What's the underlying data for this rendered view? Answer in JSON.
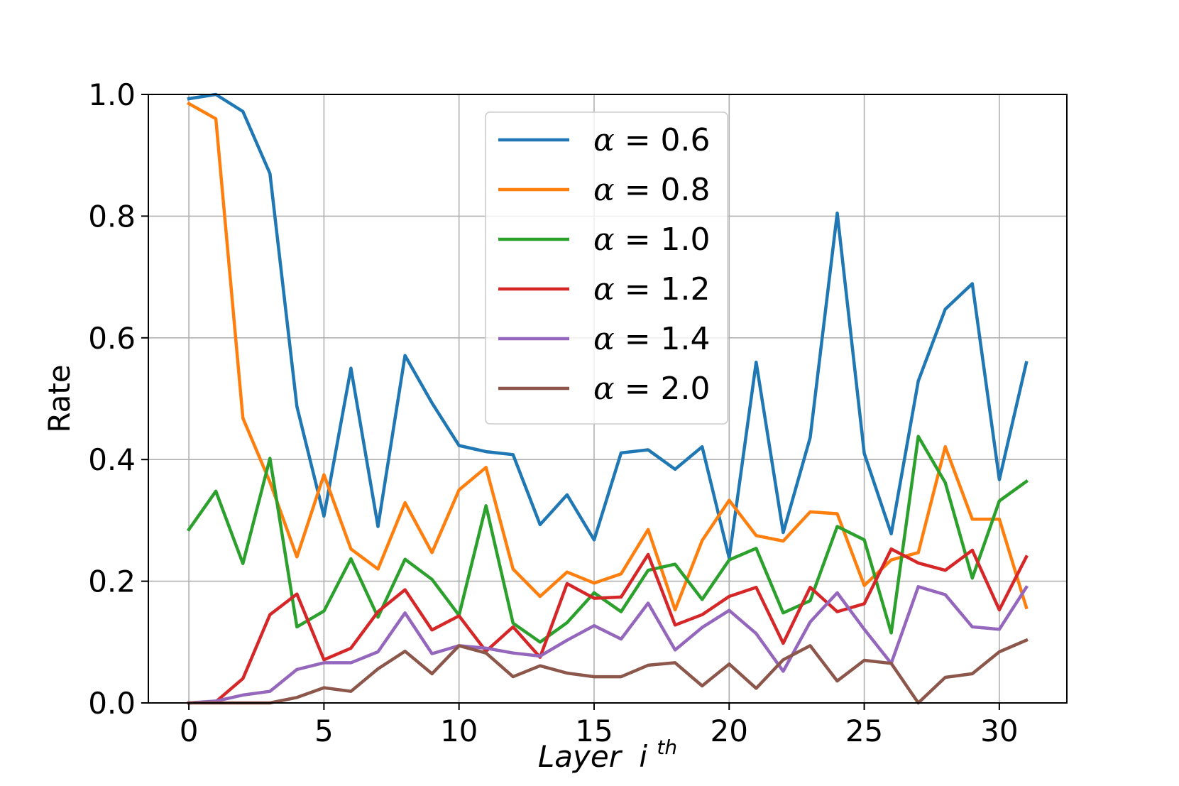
{
  "chart_data": {
    "type": "line",
    "title": "",
    "xlabel": "Layer",
    "xlabel_sup": "th",
    "xlabel_var": "i",
    "ylabel": "Rate",
    "xlim": [
      -1.5,
      32.5
    ],
    "ylim": [
      0,
      1.0
    ],
    "xticks": [
      0,
      5,
      10,
      15,
      20,
      25,
      30
    ],
    "yticks": [
      0.0,
      0.2,
      0.4,
      0.6,
      0.8,
      1.0
    ],
    "ytick_labels": [
      "0.0",
      "0.2",
      "0.4",
      "0.6",
      "0.8",
      "1.0"
    ],
    "grid": true,
    "legend_position": "top-center",
    "x": [
      0,
      1,
      2,
      3,
      4,
      5,
      6,
      7,
      8,
      9,
      10,
      11,
      12,
      13,
      14,
      15,
      16,
      17,
      18,
      19,
      20,
      21,
      22,
      23,
      24,
      25,
      26,
      27,
      28,
      29,
      30,
      31
    ],
    "series": [
      {
        "name": "α = 0.6",
        "alpha": "α",
        "value": "0.6",
        "color": "#1f77b4",
        "values": [
          0.993,
          1.0,
          0.972,
          0.87,
          0.487,
          0.307,
          0.55,
          0.29,
          0.571,
          0.493,
          0.423,
          0.413,
          0.408,
          0.293,
          0.342,
          0.268,
          0.411,
          0.416,
          0.384,
          0.421,
          0.238,
          0.56,
          0.28,
          0.436,
          0.805,
          0.41,
          0.278,
          0.529,
          0.647,
          0.689,
          0.367,
          0.559
        ]
      },
      {
        "name": "α = 0.8",
        "alpha": "α",
        "value": "0.8",
        "color": "#ff7f0e",
        "values": [
          0.985,
          0.96,
          0.468,
          0.363,
          0.24,
          0.375,
          0.253,
          0.22,
          0.329,
          0.247,
          0.35,
          0.387,
          0.22,
          0.175,
          0.215,
          0.197,
          0.212,
          0.285,
          0.153,
          0.267,
          0.333,
          0.275,
          0.266,
          0.314,
          0.311,
          0.193,
          0.235,
          0.247,
          0.421,
          0.302,
          0.302,
          0.157
        ]
      },
      {
        "name": "α = 1.0",
        "alpha": "α",
        "value": "1.0",
        "color": "#2ca02c",
        "values": [
          0.285,
          0.348,
          0.229,
          0.402,
          0.125,
          0.151,
          0.237,
          0.141,
          0.236,
          0.203,
          0.144,
          0.324,
          0.131,
          0.1,
          0.132,
          0.181,
          0.15,
          0.218,
          0.228,
          0.17,
          0.235,
          0.254,
          0.148,
          0.168,
          0.29,
          0.268,
          0.115,
          0.438,
          0.362,
          0.205,
          0.332,
          0.364
        ]
      },
      {
        "name": "α = 1.2",
        "alpha": "α",
        "value": "1.2",
        "color": "#d62728",
        "values": [
          0.0,
          0.002,
          0.04,
          0.145,
          0.179,
          0.071,
          0.09,
          0.15,
          0.186,
          0.12,
          0.143,
          0.085,
          0.125,
          0.075,
          0.196,
          0.172,
          0.174,
          0.244,
          0.128,
          0.145,
          0.175,
          0.19,
          0.098,
          0.19,
          0.15,
          0.163,
          0.253,
          0.23,
          0.218,
          0.251,
          0.153,
          0.24
        ]
      },
      {
        "name": "α = 1.4",
        "alpha": "α",
        "value": "1.4",
        "color": "#9467bd",
        "values": [
          0.0,
          0.003,
          0.013,
          0.019,
          0.055,
          0.066,
          0.066,
          0.084,
          0.148,
          0.081,
          0.094,
          0.09,
          0.082,
          0.077,
          0.103,
          0.127,
          0.105,
          0.164,
          0.087,
          0.124,
          0.152,
          0.114,
          0.052,
          0.133,
          0.181,
          0.121,
          0.065,
          0.191,
          0.178,
          0.125,
          0.121,
          0.19
        ]
      },
      {
        "name": "α = 2.0",
        "alpha": "α",
        "value": "2.0",
        "color": "#8c564b",
        "values": [
          0.0,
          0.0,
          0.0,
          0.0,
          0.009,
          0.025,
          0.019,
          0.056,
          0.085,
          0.048,
          0.094,
          0.082,
          0.043,
          0.061,
          0.049,
          0.043,
          0.043,
          0.062,
          0.066,
          0.028,
          0.064,
          0.024,
          0.071,
          0.094,
          0.036,
          0.07,
          0.065,
          0.0,
          0.042,
          0.048,
          0.084,
          0.103
        ]
      }
    ]
  }
}
